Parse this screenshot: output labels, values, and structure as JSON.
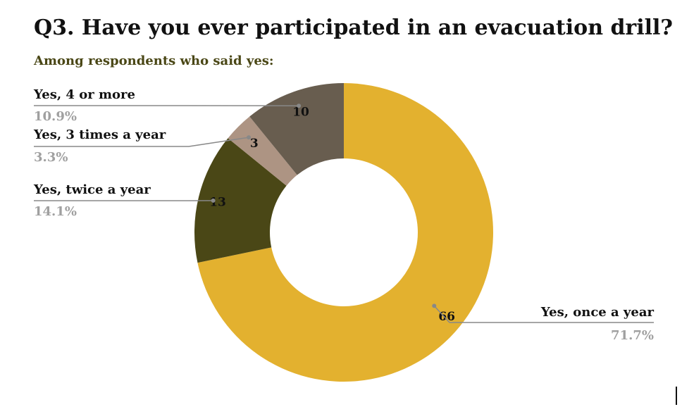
{
  "chart_data": {
    "type": "pie",
    "title": "Q3. Have you ever participated in an evacuation drill?",
    "subtitle": "Among respondents who said yes:",
    "labels": [
      "Yes, once a year",
      "Yes, twice a year",
      "Yes, 3 times a year",
      "Yes, 4 or more"
    ],
    "values": [
      66,
      13,
      3,
      10
    ],
    "percent_labels": [
      "71.7%",
      "14.1%",
      "3.3%",
      "10.9%"
    ],
    "colors": [
      "#e3b12f",
      "#4a4716",
      "#ad9483",
      "#685d4f"
    ],
    "donut": true,
    "legend": "none"
  }
}
